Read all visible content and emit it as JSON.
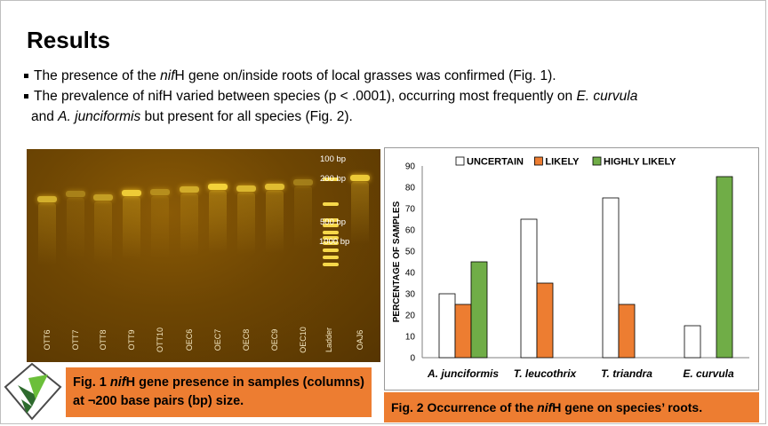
{
  "slide": {
    "title": "Results",
    "bullets": [
      {
        "parts": [
          "The presence of the ",
          "nif",
          "H gene on/inside roots of local grasses was confirmed (Fig. 1)."
        ]
      },
      {
        "line1": [
          "The prevalence of nifH varied between species (p < .0001), occurring most frequently on ",
          "E. curvula"
        ],
        "line2": [
          "and ",
          "A. junciformis",
          " but present for all species (Fig. 2)."
        ]
      }
    ]
  },
  "gel": {
    "lanes": [
      "OTT6",
      "OTT7",
      "OTT8",
      "OTT9",
      "OTT10",
      "OEC6",
      "OEC7",
      "OEC8",
      "OEC9",
      "OEC10",
      "Ladder",
      "OAJ6"
    ],
    "ladder_labels": [
      "100 bp",
      "200 bp",
      "500 bp",
      "1000 bp"
    ]
  },
  "captions": {
    "fig1": {
      "prefix": "Fig. 1 ",
      "italic": "nif",
      "rest": "H gene presence in samples (columns) at ¬200 base pairs (bp) size."
    },
    "fig2": {
      "prefix": "Fig. 2 Occurrence of the ",
      "italic": "nif",
      "rest": "H gene on species’ roots."
    }
  },
  "chart_data": {
    "type": "bar",
    "categories": [
      "A. junciformis",
      "T. leucothrix",
      "T. triandra",
      "E. curvula"
    ],
    "series": [
      {
        "name": "UNCERTAIN",
        "values": [
          30,
          65,
          75,
          15
        ],
        "color": "#ffffff"
      },
      {
        "name": "LIKELY",
        "values": [
          25,
          35,
          25,
          0
        ],
        "color": "#ed7d31"
      },
      {
        "name": "HIGHLY LIKELY",
        "values": [
          45,
          0,
          0,
          85
        ],
        "color": "#70ad47"
      }
    ],
    "ylabel": "PERCENTAGE OF SAMPLES",
    "ylim": [
      0,
      90
    ],
    "yticks": [
      0,
      10,
      20,
      30,
      40,
      50,
      60,
      70,
      80,
      90
    ],
    "legend": "top",
    "grid": false
  },
  "colors": {
    "accent": "#ed7d31",
    "green": "#70ad47",
    "gel": "#6e4603"
  },
  "icons": {
    "logo": "university-logo-icon"
  }
}
